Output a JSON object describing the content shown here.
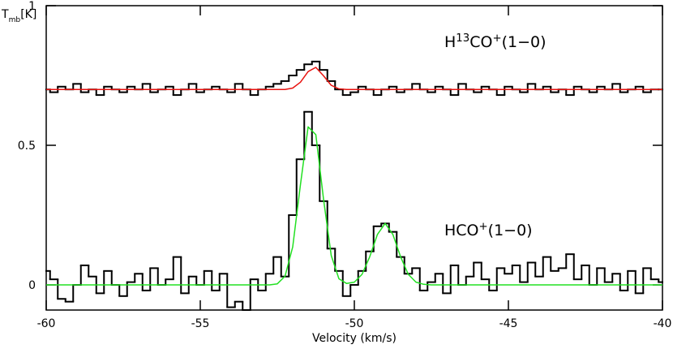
{
  "chart_data": {
    "type": "spectrum",
    "xlabel": "Velocity (km/s)",
    "ylabel": [
      {
        "text": "T"
      },
      {
        "text": "mb",
        "sub": true
      },
      {
        "text": "[K]"
      }
    ],
    "xlim": [
      -60,
      -40
    ],
    "xticks": [
      -60,
      -55,
      -50,
      -45,
      -40
    ],
    "ylim": [
      -0.09,
      1
    ],
    "yticks": [
      0,
      0.5,
      1
    ],
    "x": [
      -60,
      -59.75,
      -59.5,
      -59.25,
      -59,
      -58.75,
      -58.5,
      -58.25,
      -58,
      -57.75,
      -57.5,
      -57.25,
      -57,
      -56.75,
      -56.5,
      -56.25,
      -56,
      -55.75,
      -55.5,
      -55.25,
      -55,
      -54.75,
      -54.5,
      -54.25,
      -54,
      -53.75,
      -53.5,
      -53.25,
      -53,
      -52.75,
      -52.5,
      -52.25,
      -52,
      -51.75,
      -51.5,
      -51.25,
      -51,
      -50.75,
      -50.5,
      -50.25,
      -50,
      -49.75,
      -49.5,
      -49.25,
      -49,
      -48.75,
      -48.5,
      -48.25,
      -48,
      -47.75,
      -47.5,
      -47.25,
      -47,
      -46.75,
      -46.5,
      -46.25,
      -46,
      -45.75,
      -45.5,
      -45.25,
      -45,
      -44.75,
      -44.5,
      -44.25,
      -44,
      -43.75,
      -43.5,
      -43.25,
      -43,
      -42.75,
      -42.5,
      -42.25,
      -42,
      -41.75,
      -41.5,
      -41.25,
      -41,
      -40.75,
      -40.5,
      -40.25,
      -40
    ],
    "series": [
      {
        "style": "step",
        "color": "#000000",
        "values": [
          0.7,
          0.69,
          0.71,
          0.7,
          0.72,
          0.69,
          0.7,
          0.68,
          0.71,
          0.7,
          0.69,
          0.71,
          0.7,
          0.72,
          0.69,
          0.7,
          0.71,
          0.68,
          0.7,
          0.72,
          0.69,
          0.7,
          0.71,
          0.7,
          0.69,
          0.72,
          0.7,
          0.68,
          0.7,
          0.71,
          0.72,
          0.73,
          0.75,
          0.77,
          0.79,
          0.8,
          0.77,
          0.73,
          0.7,
          0.68,
          0.69,
          0.71,
          0.7,
          0.68,
          0.7,
          0.71,
          0.69,
          0.7,
          0.72,
          0.7,
          0.69,
          0.71,
          0.7,
          0.68,
          0.72,
          0.7,
          0.69,
          0.71,
          0.7,
          0.68,
          0.71,
          0.7,
          0.69,
          0.72,
          0.7,
          0.71,
          0.69,
          0.7,
          0.68,
          0.71,
          0.7,
          0.69,
          0.71,
          0.7,
          0.72,
          0.69,
          0.7,
          0.71,
          0.69,
          0.7,
          0.7
        ]
      },
      {
        "style": "smooth",
        "color": "#e8130f",
        "values": [
          0.7,
          0.7,
          0.7,
          0.7,
          0.7,
          0.7,
          0.7,
          0.7,
          0.7,
          0.7,
          0.7,
          0.7,
          0.7,
          0.7,
          0.7,
          0.7,
          0.7,
          0.7,
          0.7,
          0.7,
          0.7,
          0.7,
          0.7,
          0.7,
          0.7,
          0.7,
          0.7,
          0.7,
          0.7,
          0.7,
          0.7,
          0.7,
          0.705,
          0.726,
          0.764,
          0.779,
          0.749,
          0.715,
          0.702,
          0.7,
          0.7,
          0.7,
          0.7,
          0.7,
          0.7,
          0.7,
          0.7,
          0.7,
          0.7,
          0.7,
          0.7,
          0.7,
          0.7,
          0.7,
          0.7,
          0.7,
          0.7,
          0.7,
          0.7,
          0.7,
          0.7,
          0.7,
          0.7,
          0.7,
          0.7,
          0.7,
          0.7,
          0.7,
          0.7,
          0.7,
          0.7,
          0.7,
          0.7,
          0.7,
          0.7,
          0.7,
          0.7,
          0.7,
          0.7,
          0.7,
          0.7
        ]
      },
      {
        "style": "step",
        "color": "#000000",
        "values": [
          0.05,
          0.02,
          -0.05,
          -0.06,
          0,
          0.07,
          0.03,
          -0.03,
          0.05,
          0,
          -0.04,
          0.01,
          0.04,
          -0.02,
          0.06,
          0,
          0.02,
          0.1,
          -0.03,
          0.03,
          0,
          0.05,
          -0.02,
          0.04,
          -0.08,
          -0.06,
          -0.09,
          0.02,
          -0.02,
          0.04,
          0.1,
          0.03,
          0.25,
          0.45,
          0.62,
          0.5,
          0.3,
          0.13,
          0.05,
          -0.04,
          0,
          0.05,
          0.12,
          0.21,
          0.22,
          0.19,
          0.1,
          0.04,
          0.06,
          -0.02,
          0.01,
          0.04,
          -0.03,
          0.07,
          0,
          0.03,
          0.08,
          0.02,
          -0.02,
          0.06,
          0.04,
          0.07,
          0.01,
          0.08,
          0.03,
          0.1,
          0.05,
          0.06,
          0.11,
          0.02,
          0.07,
          0,
          0.06,
          0.01,
          0.04,
          -0.02,
          0.05,
          -0.03,
          0.06,
          0.02,
          0.01
        ]
      },
      {
        "style": "smooth",
        "color": "#22e022",
        "values": [
          0,
          0,
          0,
          0,
          0,
          0,
          0,
          0,
          0,
          0,
          0,
          0,
          0,
          0,
          0,
          0,
          0,
          0,
          0,
          0,
          0,
          0,
          0,
          0,
          0,
          0,
          0,
          0,
          0,
          0,
          0.004,
          0.031,
          0.136,
          0.358,
          0.566,
          0.538,
          0.307,
          0.105,
          0.022,
          0.005,
          0.01,
          0.038,
          0.101,
          0.181,
          0.22,
          0.181,
          0.101,
          0.038,
          0.01,
          0.002,
          0,
          0,
          0,
          0,
          0,
          0,
          0,
          0,
          0,
          0,
          0,
          0,
          0,
          0,
          0,
          0,
          0,
          0,
          0,
          0,
          0,
          0,
          0,
          0,
          0,
          0,
          0,
          0,
          0,
          0,
          0
        ]
      }
    ],
    "annotations": [
      [
        {
          "text": "H"
        },
        {
          "text": "13",
          "sup": true
        },
        {
          "text": "CO"
        },
        {
          "text": "+",
          "sup": true
        },
        {
          "text": "(1−0)"
        }
      ],
      [
        {
          "text": "HCO"
        },
        {
          "text": "+",
          "sup": true
        },
        {
          "text": "(1−0)"
        }
      ]
    ]
  }
}
